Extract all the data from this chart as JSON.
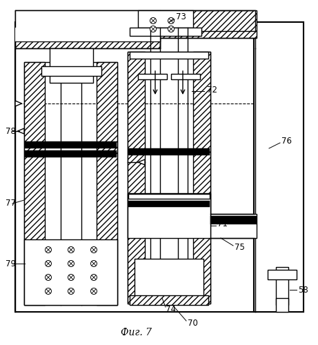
{
  "bg": "#ffffff",
  "lc": "#000000",
  "caption": "Фиг. 7"
}
